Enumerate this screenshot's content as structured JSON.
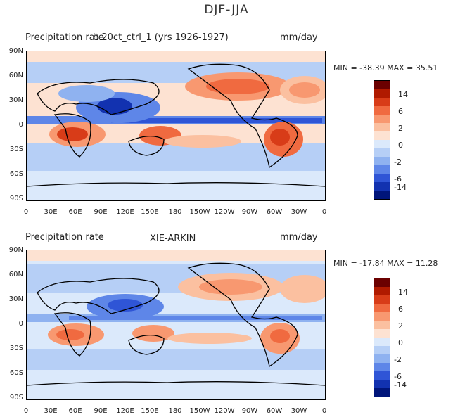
{
  "figure_title": "DJF-JJA",
  "panels": [
    {
      "title_left": "Precipitation rate",
      "title_center": "b.20ct_ctrl_1 (yrs 1926-1927)",
      "units": "mm/day",
      "stats": "MIN = -38.39  MAX =  35.51"
    },
    {
      "title_left": "Precipitation rate",
      "title_center": "XIE-ARKIN",
      "units": "mm/day",
      "stats": "MIN = -17.84  MAX =  11.28"
    }
  ],
  "lat_labels": [
    "90N",
    "60N",
    "30N",
    "0",
    "30S",
    "60S",
    "90S"
  ],
  "lon_labels": [
    "0",
    "30E",
    "60E",
    "90E",
    "120E",
    "150E",
    "180",
    "150W",
    "120W",
    "90W",
    "60W",
    "30W",
    "0"
  ],
  "colorbar": {
    "labels": [
      "14",
      "6",
      "2",
      "0",
      "-2",
      "-6",
      "-14"
    ],
    "colors": [
      "#6b0000",
      "#b01a00",
      "#d83c18",
      "#f06a40",
      "#f89870",
      "#fbc0a0",
      "#fde2d2",
      "#dbe9fb",
      "#b6cff6",
      "#8fb2f0",
      "#5e86e8",
      "#2f55d6",
      "#1232b0",
      "#00157a"
    ]
  }
}
